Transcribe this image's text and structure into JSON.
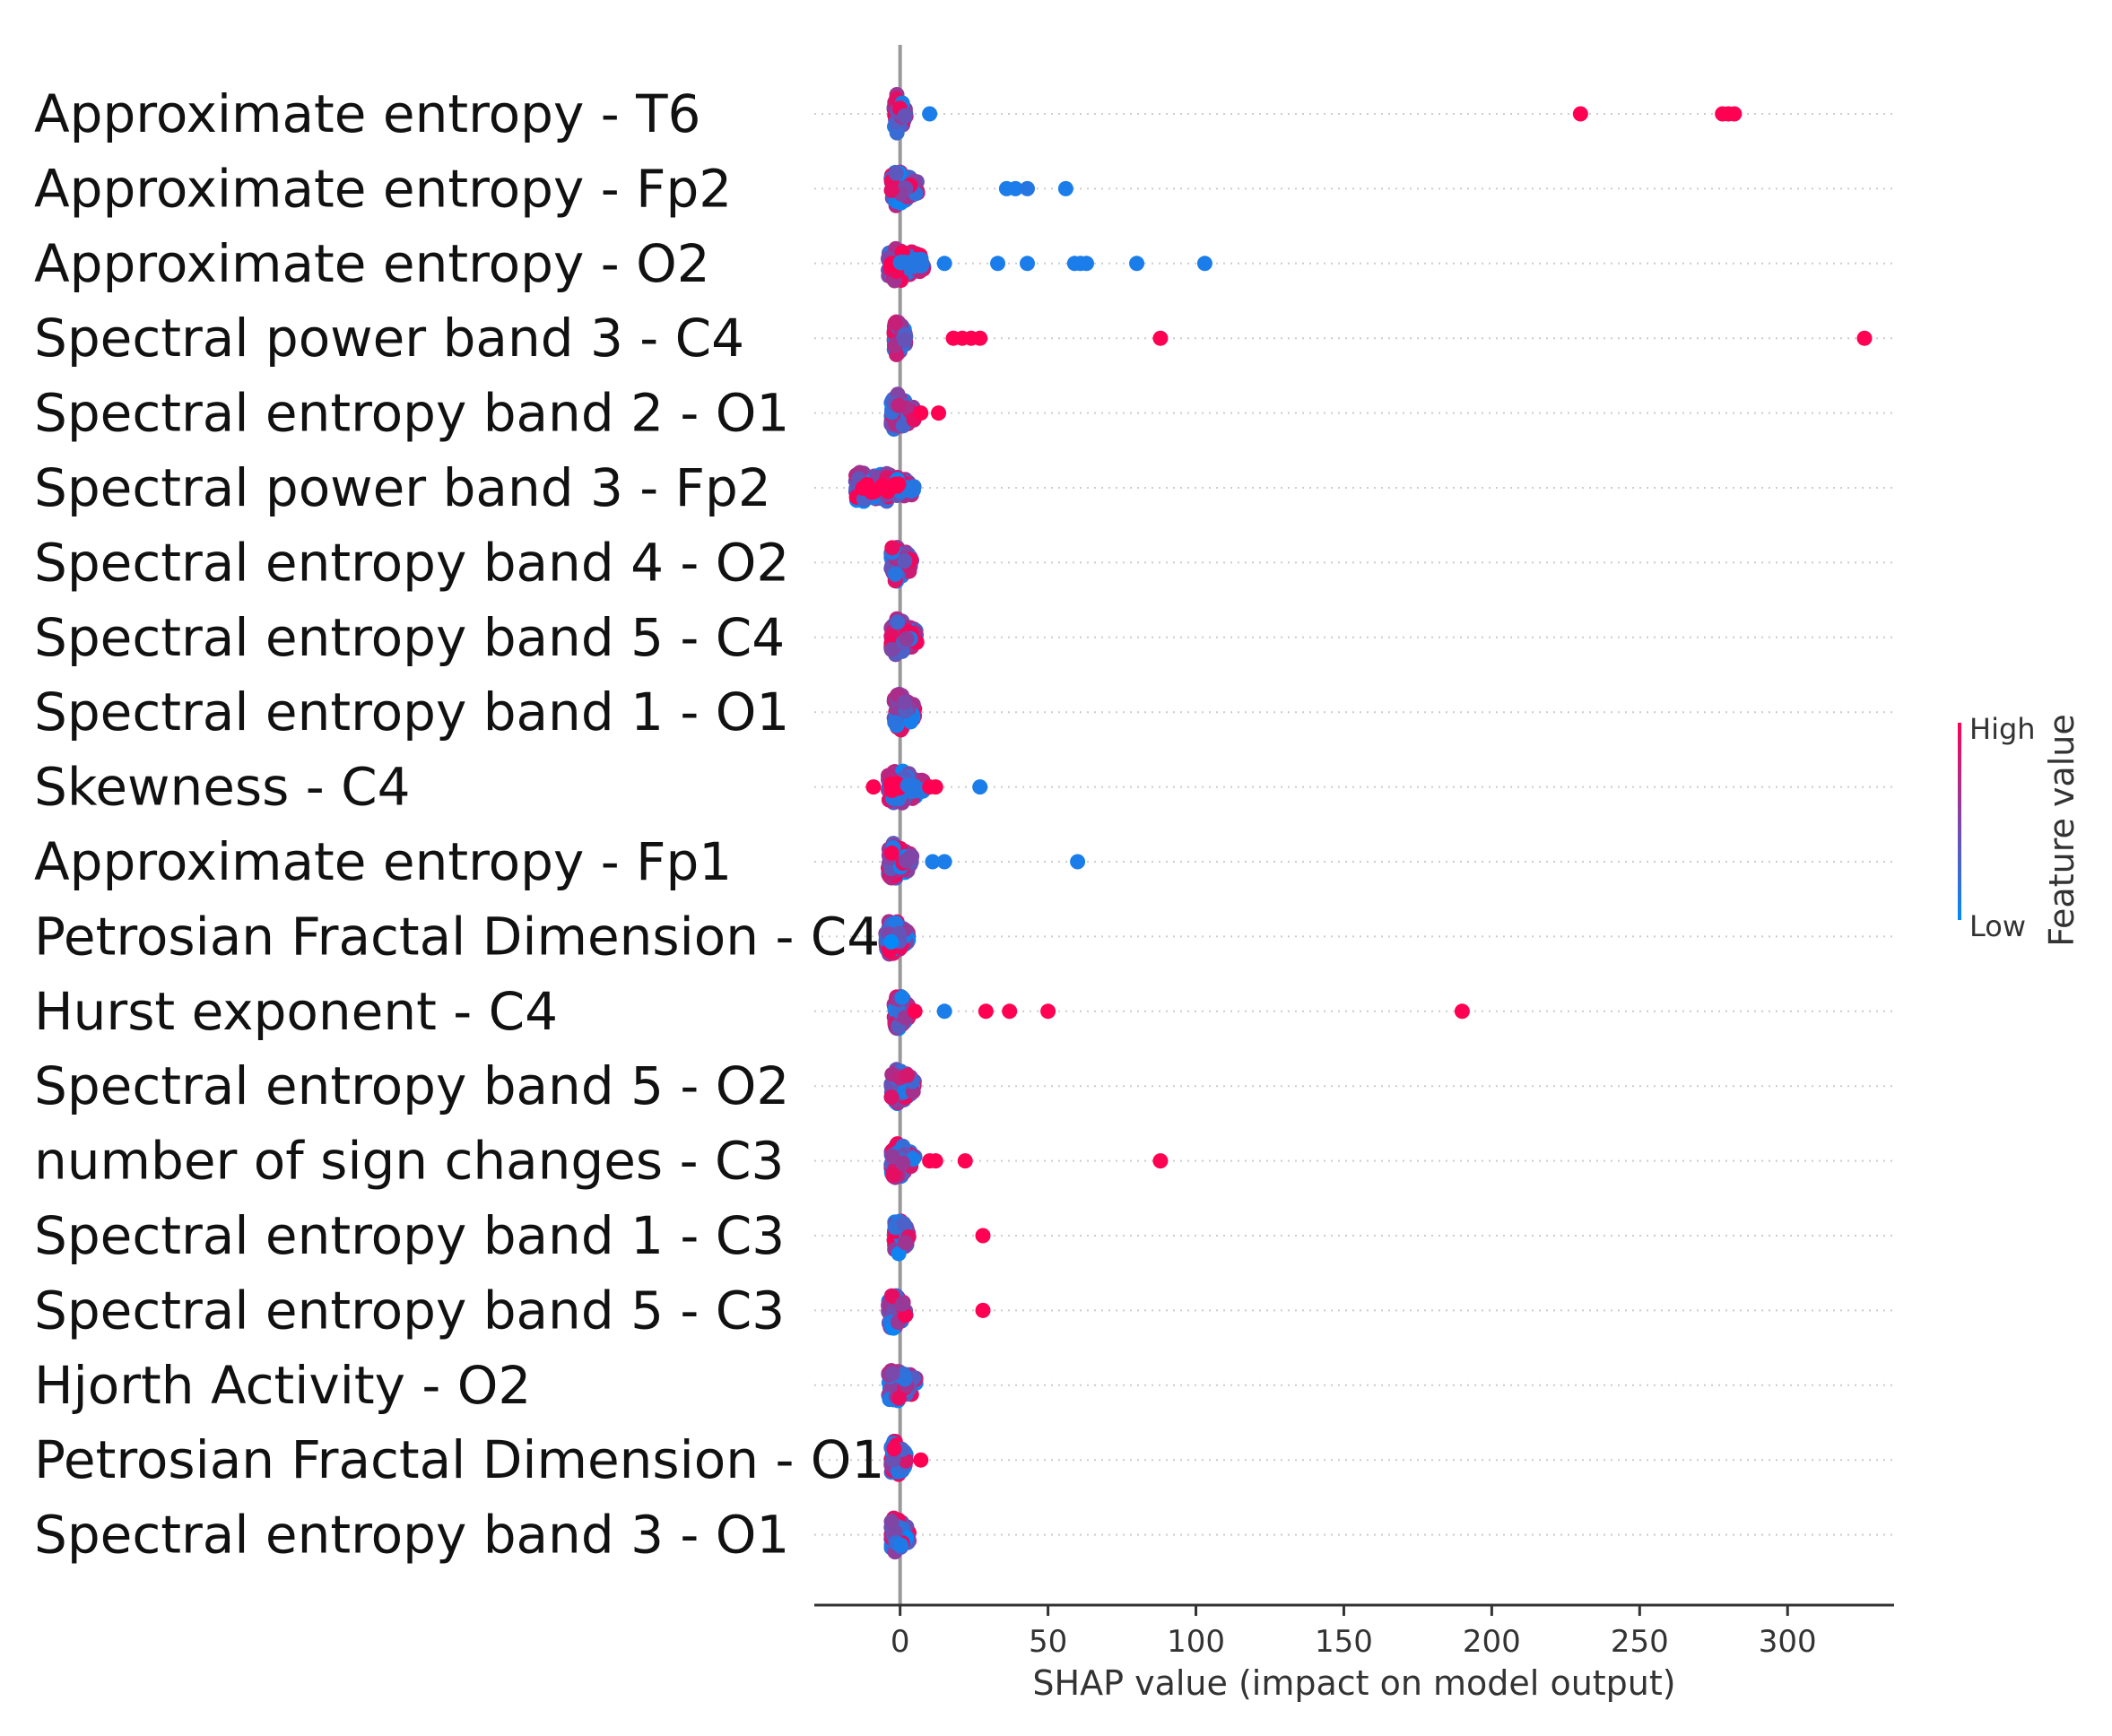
{
  "chart_data": {
    "type": "scatter",
    "subtype": "shap-beeswarm",
    "xlabel": "SHAP value (impact on model output)",
    "xlim": [
      -29,
      336
    ],
    "xticks": [
      0,
      50,
      100,
      150,
      200,
      250,
      300
    ],
    "colorbar": {
      "title": "Feature value",
      "high_label": "High",
      "low_label": "Low",
      "high_color": "#ff0052",
      "low_color": "#008bfb"
    },
    "features": [
      {
        "name": "Approximate entropy - T6",
        "spread": [
          -2,
          2
        ],
        "outliers": [
          {
            "x": 10,
            "v": 0.1
          },
          {
            "x": 230,
            "v": 1
          },
          {
            "x": 278,
            "v": 1
          },
          {
            "x": 280,
            "v": 1
          },
          {
            "x": 282,
            "v": 1
          }
        ]
      },
      {
        "name": "Approximate entropy - Fp2",
        "spread": [
          -3,
          6
        ],
        "outliers": [
          {
            "x": 36,
            "v": 0.1
          },
          {
            "x": 39,
            "v": 0.1
          },
          {
            "x": 43,
            "v": 0.15
          },
          {
            "x": 56,
            "v": 0.1
          }
        ]
      },
      {
        "name": "Approximate entropy - O2",
        "spread": [
          -4,
          8
        ],
        "outliers": [
          {
            "x": 15,
            "v": 0.1
          },
          {
            "x": 33,
            "v": 0.1
          },
          {
            "x": 43,
            "v": 0.1
          },
          {
            "x": 59,
            "v": 0.1
          },
          {
            "x": 61,
            "v": 0.1
          },
          {
            "x": 63,
            "v": 0.1
          },
          {
            "x": 80,
            "v": 0.1
          },
          {
            "x": 103,
            "v": 0.1
          }
        ]
      },
      {
        "name": "Spectral power band 3 - C4",
        "spread": [
          -2,
          2
        ],
        "outliers": [
          {
            "x": 18,
            "v": 1
          },
          {
            "x": 21,
            "v": 1
          },
          {
            "x": 24,
            "v": 1
          },
          {
            "x": 27,
            "v": 1
          },
          {
            "x": 88,
            "v": 1
          },
          {
            "x": 326,
            "v": 1
          }
        ]
      },
      {
        "name": "Spectral entropy band 2 - O1",
        "spread": [
          -3,
          5
        ],
        "outliers": [
          {
            "x": 7,
            "v": 1
          },
          {
            "x": 13,
            "v": 1
          }
        ]
      },
      {
        "name": "Spectral power band 3 - Fp2",
        "spread": [
          -15,
          5
        ],
        "outliers": []
      },
      {
        "name": "Spectral entropy band 4 - O2",
        "spread": [
          -3,
          4
        ],
        "outliers": []
      },
      {
        "name": "Spectral entropy band 5 - C4",
        "spread": [
          -3,
          6
        ],
        "outliers": []
      },
      {
        "name": "Spectral entropy band 1 - O1",
        "spread": [
          -2,
          5
        ],
        "outliers": []
      },
      {
        "name": "Skewness - C4",
        "spread": [
          -4,
          8
        ],
        "outliers": [
          {
            "x": -9,
            "v": 1
          },
          {
            "x": 10,
            "v": 1
          },
          {
            "x": 12,
            "v": 1
          },
          {
            "x": 27,
            "v": 0.1
          }
        ]
      },
      {
        "name": "Approximate entropy - Fp1",
        "spread": [
          -4,
          4
        ],
        "outliers": [
          {
            "x": 11,
            "v": 0.1
          },
          {
            "x": 15,
            "v": 0.1
          },
          {
            "x": 60,
            "v": 0.1
          }
        ]
      },
      {
        "name": "Petrosian Fractal Dimension - C4",
        "spread": [
          -5,
          3
        ],
        "outliers": []
      },
      {
        "name": "Hurst exponent - C4",
        "spread": [
          -2,
          3
        ],
        "outliers": [
          {
            "x": 5,
            "v": 1
          },
          {
            "x": 15,
            "v": 0.1
          },
          {
            "x": 29,
            "v": 1
          },
          {
            "x": 37,
            "v": 1
          },
          {
            "x": 50,
            "v": 1
          },
          {
            "x": 190,
            "v": 1
          }
        ]
      },
      {
        "name": "Spectral entropy band 5 - O2",
        "spread": [
          -3,
          5
        ],
        "outliers": []
      },
      {
        "name": "number of sign changes - C3",
        "spread": [
          -3,
          5
        ],
        "outliers": [
          {
            "x": 10,
            "v": 1
          },
          {
            "x": 12,
            "v": 1
          },
          {
            "x": 22,
            "v": 1
          },
          {
            "x": 88,
            "v": 1
          }
        ]
      },
      {
        "name": "Spectral entropy band 1 - C3",
        "spread": [
          -2,
          3
        ],
        "outliers": [
          {
            "x": 28,
            "v": 1
          }
        ]
      },
      {
        "name": "Spectral entropy band 5 - C3",
        "spread": [
          -4,
          2
        ],
        "outliers": [
          {
            "x": 28,
            "v": 1
          }
        ]
      },
      {
        "name": "Hjorth Activity - O2",
        "spread": [
          -4,
          6
        ],
        "outliers": []
      },
      {
        "name": "Petrosian Fractal Dimension - O1",
        "spread": [
          -3,
          2
        ],
        "outliers": [
          {
            "x": 7,
            "v": 1
          }
        ]
      },
      {
        "name": "Spectral entropy band 3 - O1",
        "spread": [
          -3,
          3
        ],
        "outliers": []
      }
    ]
  }
}
